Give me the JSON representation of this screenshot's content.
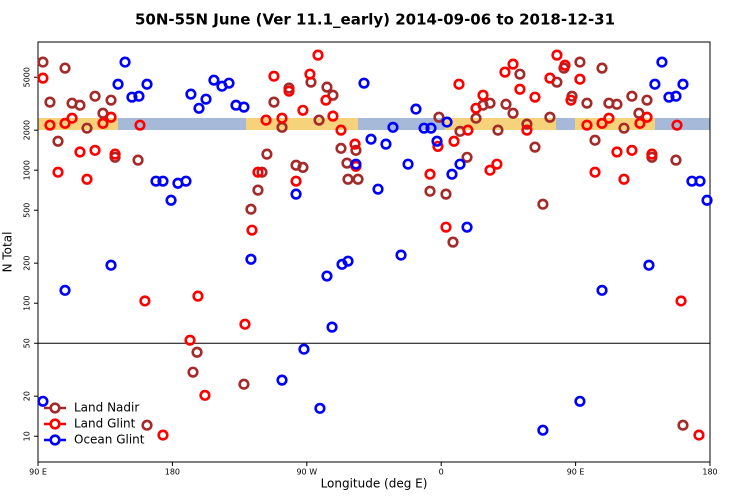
{
  "chart_data": {
    "type": "scatter",
    "title": "50N-55N June (Ver 11.1_early)   2014-09-06 to 2018-12-31",
    "x_label": "Longitude (deg E)",
    "y_label": "N Total",
    "log_y": true,
    "legend": "lower left",
    "xlim": [
      90,
      540
    ],
    "ylim": [
      6.4,
      9200
    ],
    "xticks": [
      {
        "value": 90,
        "label": "90 E"
      },
      {
        "value": 180,
        "label": "180"
      },
      {
        "value": 270,
        "label": "90 W"
      },
      {
        "value": 360,
        "label": "0"
      },
      {
        "value": 450,
        "label": "90 E"
      },
      {
        "value": 540,
        "label": "180"
      }
    ],
    "yticks": [
      10,
      20,
      50,
      100,
      200,
      500,
      1000,
      2000,
      5000
    ],
    "reference_line": 50,
    "series": [
      {
        "name": "Land Nadir",
        "color": "#a52a2a",
        "x": [
          93.3,
          98.0,
          103.4,
          108.1,
          112.8,
          118.1,
          122.8,
          128.2,
          133.5,
          138.9,
          141.6,
          157.0,
          163.0,
          193.8,
          196.5,
          227.9,
          232.6,
          237.3,
          240.0,
          243.3,
          248.0,
          253.4,
          258.1,
          262.8,
          267.4,
          272.8,
          278.2,
          283.5,
          287.5,
          292.9,
          296.9,
          297.6,
          302.9,
          304.3,
          358.5,
          352.5,
          363.2,
          367.9,
          372.6,
          377.3,
          383.3,
          388.0,
          392.7,
          398.0,
          403.4,
          408.1,
          412.7,
          417.4,
          422.8,
          428.1,
          432.8,
          437.5,
          442.2,
          447.6,
          452.9,
          457.6,
          463.0,
          467.7,
          472.3,
          477.7,
          482.4,
          487.7,
          492.4,
          497.8,
          501.1,
          517.2,
          521.9
        ],
        "values": [
          6500,
          3250,
          1650,
          5850,
          3190,
          3080,
          2070,
          3600,
          2680,
          3360,
          1250,
          1190,
          12.1,
          30.3,
          42.8,
          24.6,
          509,
          708,
          966,
          1320,
          3250,
          2100,
          4140,
          1090,
          1050,
          4590,
          2380,
          4210,
          3660,
          1460,
          1130,
          855,
          1410,
          855,
          2500,
          695,
          661,
          288,
          1960,
          1250,
          2460,
          3080,
          3190,
          2000,
          3130,
          2680,
          5270,
          2220,
          1490,
          555,
          2500,
          4590,
          5850,
          3600,
          6500,
          3190,
          1680,
          5850,
          3190,
          3130,
          2070,
          3600,
          2680,
          3360,
          1250,
          1190,
          12.1
        ]
      },
      {
        "name": "Land Glint",
        "color": "#ff0000",
        "x": [
          93.3,
          98.0,
          103.4,
          108.1,
          112.8,
          118.1,
          122.8,
          128.2,
          133.5,
          138.9,
          141.6,
          158.3,
          161.6,
          191.8,
          197.1,
          201.8,
          228.6,
          233.3,
          237.3,
          242.7,
          248.0,
          253.4,
          258.1,
          262.8,
          267.4,
          272.1,
          277.5,
          282.8,
          287.5,
          292.9,
          302.3,
          302.9,
          352.5,
          357.8,
          363.2,
          368.6,
          371.9,
          377.9,
          383.3,
          388.0,
          392.7,
          397.3,
          402.7,
          408.1,
          412.7,
          417.4,
          422.8,
          432.8,
          437.5,
          442.9,
          446.9,
          452.9,
          457.6,
          463.0,
          467.7,
          472.3,
          477.7,
          482.4,
          487.7,
          493.1,
          497.8,
          501.1,
          517.9,
          520.6,
          532.6,
          173.7
        ],
        "values": [
          4920,
          2180,
          966,
          2250,
          2460,
          1370,
          855,
          1410,
          2250,
          2500,
          1320,
          2180,
          104,
          52.7,
          113,
          20.3,
          69.5,
          354,
          966,
          2380,
          5090,
          2460,
          3930,
          827,
          2820,
          5270,
          7330,
          3360,
          2550,
          2000,
          1570,
          1070,
          933,
          1510,
          373,
          1650,
          4430,
          2000,
          2920,
          3660,
          1000,
          1110,
          5460,
          6270,
          4060,
          2000,
          3540,
          4920,
          7330,
          6150,
          3360,
          4830,
          2180,
          966,
          2250,
          2460,
          1370,
          855,
          1410,
          2250,
          2500,
          1320,
          2180,
          104,
          10.2,
          10.2
        ]
      },
      {
        "name": "Ocean Glint",
        "color": "#0000ff",
        "x": [
          93.3,
          108.1,
          138.9,
          143.6,
          148.3,
          152.9,
          157.6,
          163.0,
          169.0,
          173.7,
          179.1,
          183.7,
          189.1,
          192.4,
          197.8,
          202.5,
          207.8,
          213.2,
          217.9,
          222.6,
          227.9,
          232.6,
          253.4,
          262.8,
          268.1,
          278.8,
          283.5,
          286.9,
          293.6,
          297.6,
          302.9,
          308.3,
          313.0,
          317.7,
          323.0,
          327.7,
          333.1,
          337.8,
          343.1,
          348.5,
          353.2,
          357.2,
          363.9,
          367.2,
          372.6,
          377.3,
          428.1,
          452.9,
          467.7,
          499.1,
          503.1,
          507.8,
          512.5,
          517.2,
          521.9,
          527.9,
          533.3,
          538.0
        ],
        "values": [
          18.3,
          125,
          193,
          4430,
          6500,
          3540,
          3600,
          4430,
          827,
          827,
          594,
          798,
          827,
          3730,
          2920,
          3420,
          4750,
          4280,
          4510,
          3080,
          2980,
          214,
          26.4,
          661,
          45.1,
          16.2,
          160,
          66.1,
          196,
          207,
          1110,
          4510,
          1710,
          720,
          1570,
          2100,
          230,
          1110,
          2880,
          2070,
          2070,
          1650,
          2300,
          933,
          1110,
          373,
          11.1,
          18.3,
          125,
          193,
          4430,
          6500,
          3540,
          3600,
          4430,
          827,
          827,
          594
        ]
      }
    ]
  }
}
